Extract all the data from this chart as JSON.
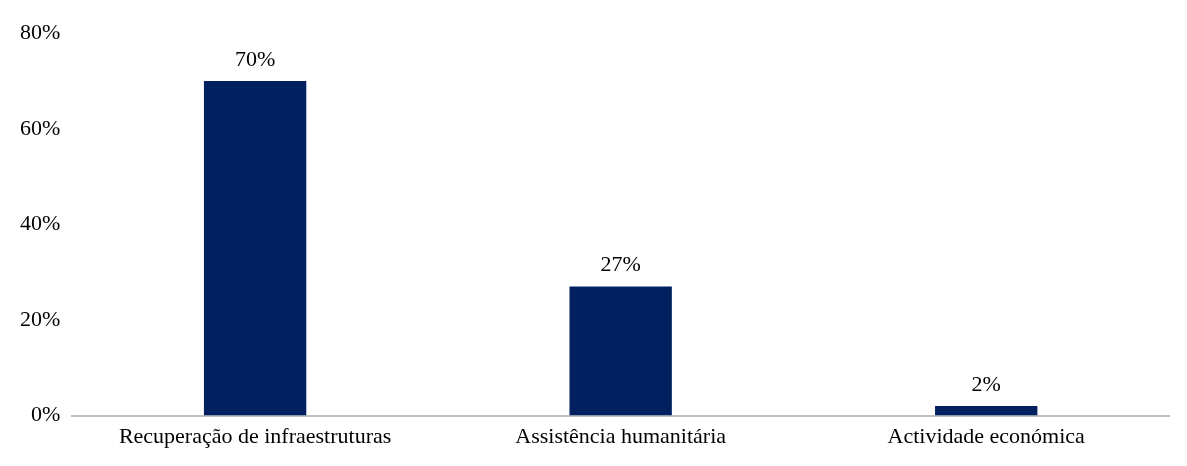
{
  "chart_data": {
    "type": "bar",
    "categories": [
      "Recuperação de infraestruturas",
      "Assistência humanitária",
      "Actividade económica"
    ],
    "values": [
      70,
      27,
      2
    ],
    "color": "#002060",
    "value_labels": [
      "70%",
      "27%",
      "2%"
    ],
    "ylim": [
      0,
      80
    ],
    "yticks": [
      {
        "value": 0,
        "label": "0%"
      },
      {
        "value": 20,
        "label": "20%"
      },
      {
        "value": 40,
        "label": "40%"
      },
      {
        "value": 60,
        "label": "60%"
      },
      {
        "value": 80,
        "label": "80%"
      }
    ],
    "grid": false,
    "legend": false
  }
}
